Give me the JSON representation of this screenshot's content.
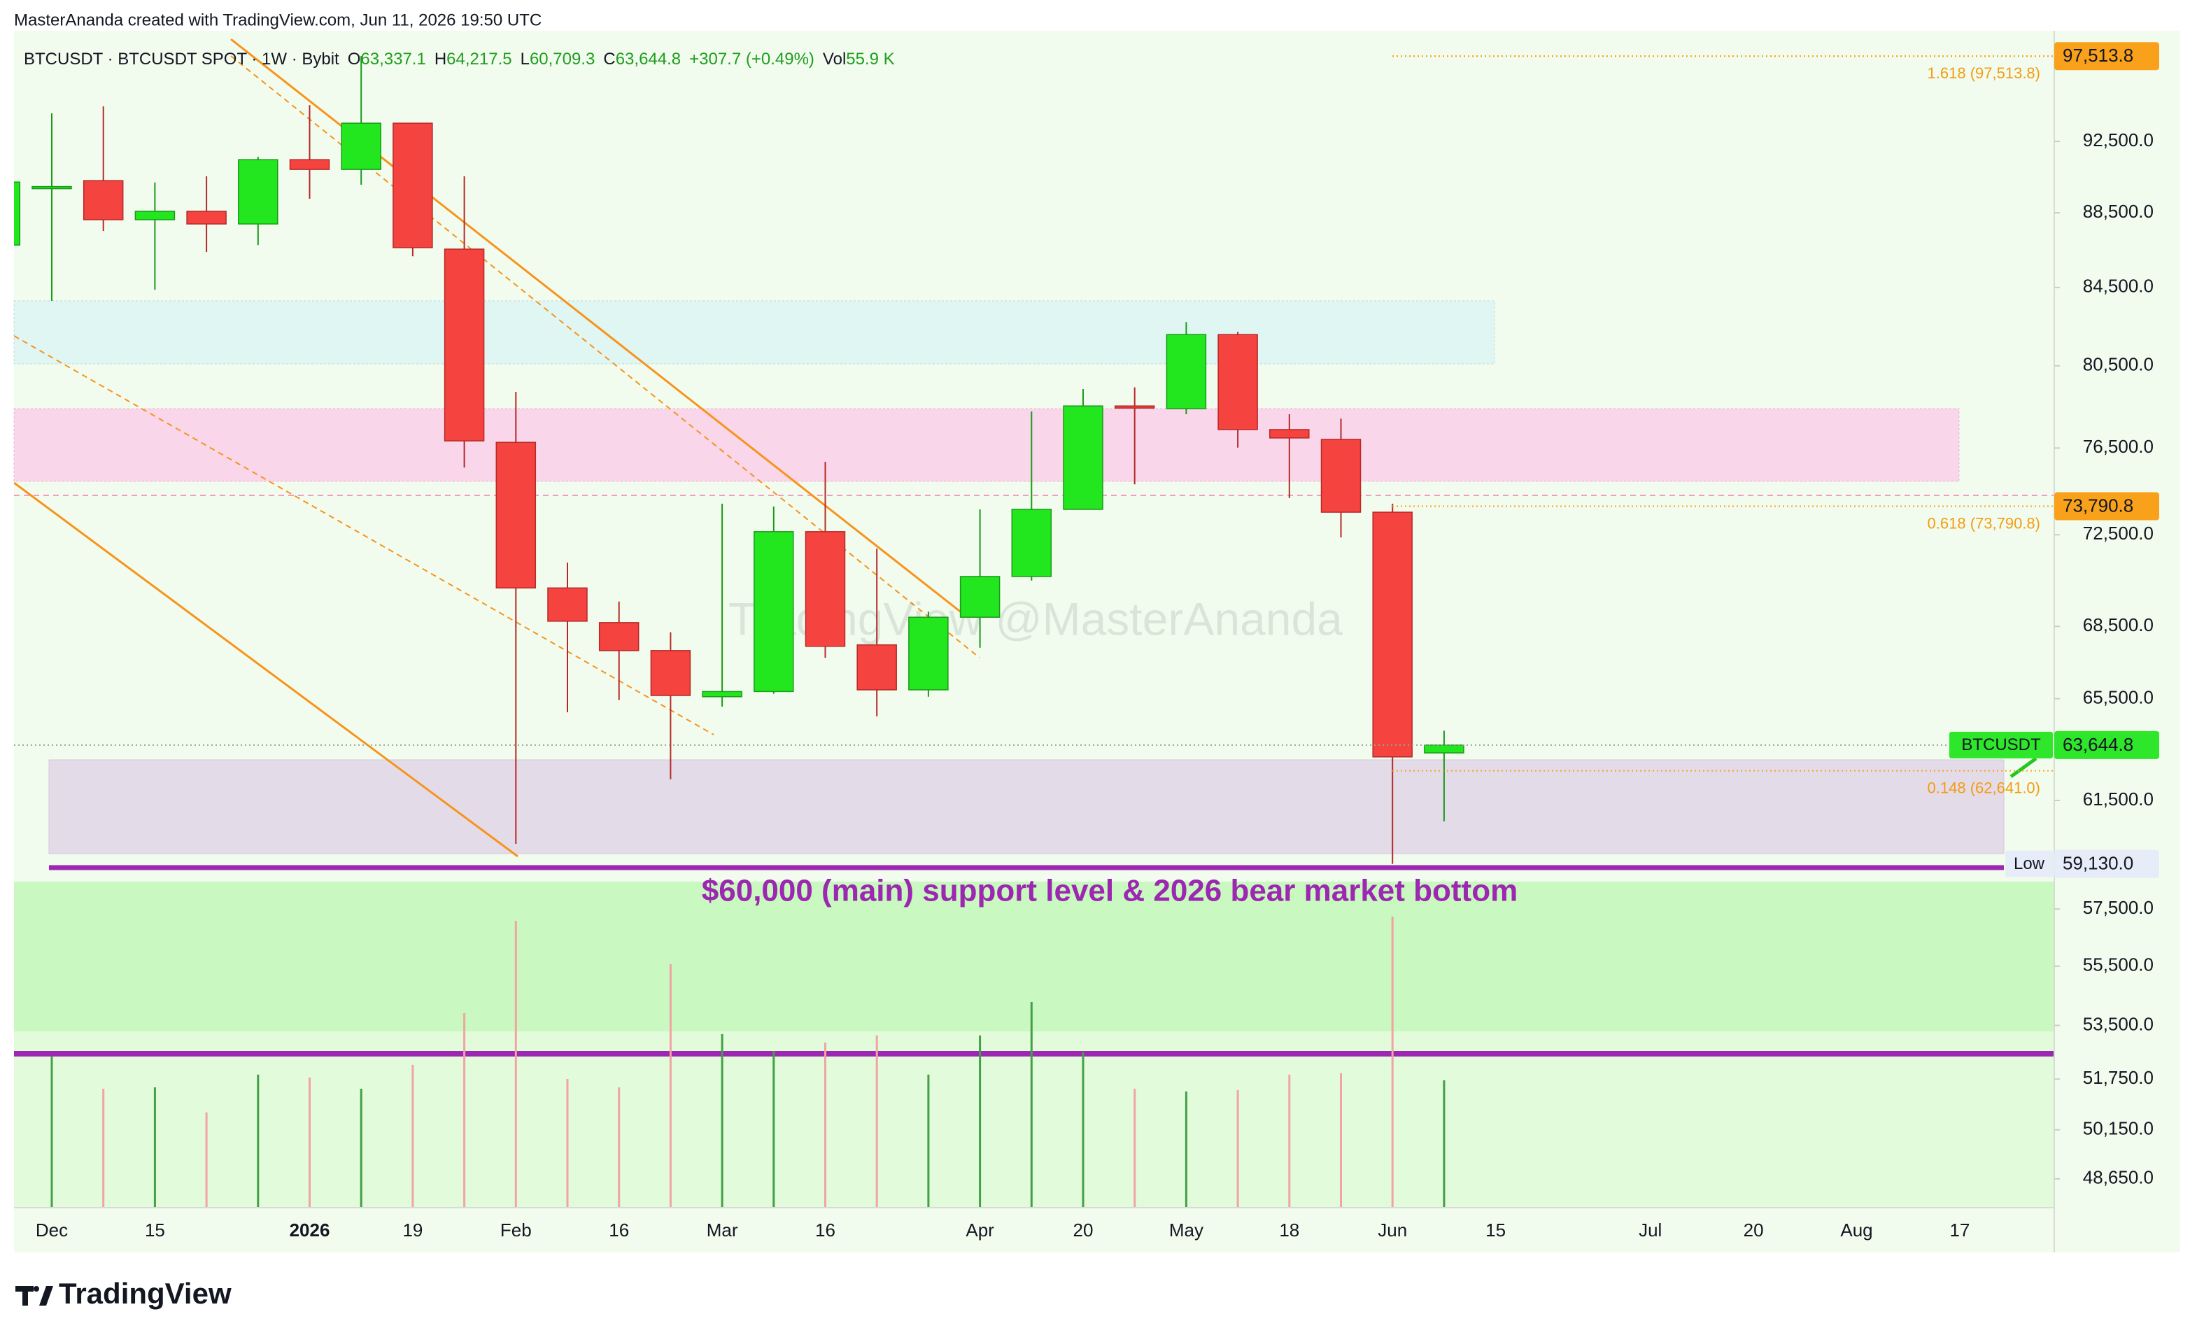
{
  "header": {
    "attribution": "MasterAnanda created with TradingView.com, Jun 11, 2026 19:50 UTC"
  },
  "chart_data": {
    "type": "candlestick",
    "symbol": "BTCUSDT · BTCUSDT SPOT · 1W · Bybit",
    "legend": [
      {
        "key": "O",
        "value": "63,337.1"
      },
      {
        "key": "H",
        "value": "64,217.5"
      },
      {
        "key": "L",
        "value": "60,709.3"
      },
      {
        "key": "C",
        "value": "63,644.8"
      },
      {
        "value": "+307.7 (+0.49%)"
      },
      {
        "key": "Vol",
        "value": "55.9 K"
      }
    ],
    "categories": [
      null,
      "Dec",
      null,
      "15",
      null,
      null,
      "2026",
      null,
      "19",
      null,
      "Feb",
      null,
      "16",
      null,
      "Mar",
      null,
      "16",
      null,
      null,
      "Apr",
      null,
      "20",
      null,
      "May",
      null,
      "18",
      null,
      "Jun",
      null,
      "15",
      null,
      null,
      "Jul",
      null,
      "20",
      null,
      "Aug",
      null,
      "17",
      null
    ],
    "open": [
      86750,
      89900,
      90280,
      88120,
      88580,
      87890,
      91460,
      90910,
      93550,
      86530,
      76770,
      70150,
      68660,
      67480,
      65580,
      65790,
      72640,
      67720,
      65860,
      68890,
      70650,
      73650,
      78520,
      78390,
      82070,
      77380,
      76910,
      73520,
      63337.1,
      null,
      null,
      null,
      null,
      null,
      null,
      null,
      null,
      null,
      null,
      null
    ],
    "high": [
      90200,
      94120,
      94530,
      90180,
      90520,
      91620,
      94600,
      97520,
      93550,
      90520,
      79210,
      71260,
      69560,
      68250,
      73910,
      73780,
      75850,
      71880,
      69130,
      73650,
      78250,
      79350,
      79430,
      82710,
      82210,
      78120,
      77910,
      73910,
      64217.5,
      null,
      null,
      null,
      null,
      null,
      null,
      null,
      null,
      null,
      null,
      null
    ],
    "low": [
      86750,
      83800,
      87510,
      84380,
      86380,
      86750,
      89270,
      90050,
      86150,
      75580,
      59870,
      64950,
      65450,
      62310,
      65180,
      65700,
      67180,
      64790,
      65580,
      67600,
      70470,
      73650,
      74800,
      78120,
      76520,
      74160,
      72380,
      59130,
      60709.3,
      null,
      null,
      null,
      null,
      null,
      null,
      null,
      null,
      null,
      null,
      null
    ],
    "close": [
      90200,
      89950,
      88120,
      88580,
      87890,
      91460,
      90910,
      93550,
      86610,
      76840,
      70150,
      68720,
      67480,
      65630,
      65790,
      72640,
      67660,
      65860,
      68890,
      70650,
      73650,
      78520,
      78500,
      82070,
      77380,
      76980,
      73520,
      63180,
      63644.8,
      null,
      null,
      null,
      null,
      null,
      null,
      null,
      null,
      null,
      null,
      null
    ],
    "volume": [
      null,
      66.3,
      52.2,
      52.8,
      41.8,
      58.4,
      57.1,
      52.2,
      62.7,
      85.4,
      125.9,
      56.5,
      52.8,
      106.9,
      76.2,
      68.8,
      72.5,
      75.6,
      58.4,
      75.6,
      90.3,
      68.2,
      52.2,
      51.0,
      51.6,
      58.4,
      59.0,
      127.8,
      55.9,
      null,
      null,
      null,
      null,
      null,
      null,
      null,
      null,
      null,
      null,
      null
    ],
    "volume_lim": [
      0,
      516.6
    ],
    "up_color": "#22e61e",
    "up_border": "#1a9a1a",
    "down_color": "#f5433f",
    "down_border": "#b52a28",
    "volume_up_color": "#43a047",
    "volume_down_color": "#f2a3a3",
    "log_scale": true,
    "ylim": [
      47790,
      99060
    ],
    "yticks": [
      {
        "value": 92500,
        "label": "92,500.0"
      },
      {
        "value": 88500,
        "label": "88,500.0"
      },
      {
        "value": 84500,
        "label": "84,500.0"
      },
      {
        "value": 80500,
        "label": "80,500.0"
      },
      {
        "value": 76500,
        "label": "76,500.0"
      },
      {
        "value": 72500,
        "label": "72,500.0"
      },
      {
        "value": 68500,
        "label": "68,500.0"
      },
      {
        "value": 65500,
        "label": "65,500.0"
      },
      {
        "value": 61500,
        "label": "61,500.0"
      },
      {
        "value": 57500,
        "label": "57,500.0"
      },
      {
        "value": 55500,
        "label": "55,500.0"
      },
      {
        "value": 53500,
        "label": "53,500.0"
      },
      {
        "value": 51750,
        "label": "51,750.0"
      },
      {
        "value": 50150,
        "label": "50,150.0"
      },
      {
        "value": 48650,
        "label": "48,650.0"
      }
    ],
    "price_markers": [
      {
        "value": 97513.8,
        "label": "97,513.8",
        "color": "#f9a11b"
      },
      {
        "value": 73790.8,
        "label": "73,790.8",
        "color": "#f9a11b"
      },
      {
        "value": 63644.8,
        "label": "63,644.8",
        "tag": "BTCUSDT",
        "color": "#2ee62a"
      },
      {
        "value": 59130.0,
        "label": "59,130.0",
        "tag": "Low",
        "color": "#e6edf8"
      }
    ],
    "fib_levels": [
      {
        "value": 97513.8,
        "label": "1.618 (97,513.8)"
      },
      {
        "value": 73790.8,
        "label": "0.618 (73,790.8)"
      },
      {
        "value": 62641.0,
        "label": "0.148 (62,641.0)"
      }
    ],
    "annotation": "$60,000 (main) support level & 2026 bear market bottom",
    "watermark": "TradingView @MasterAnanda"
  },
  "footer": {
    "logo": "TradingView"
  }
}
